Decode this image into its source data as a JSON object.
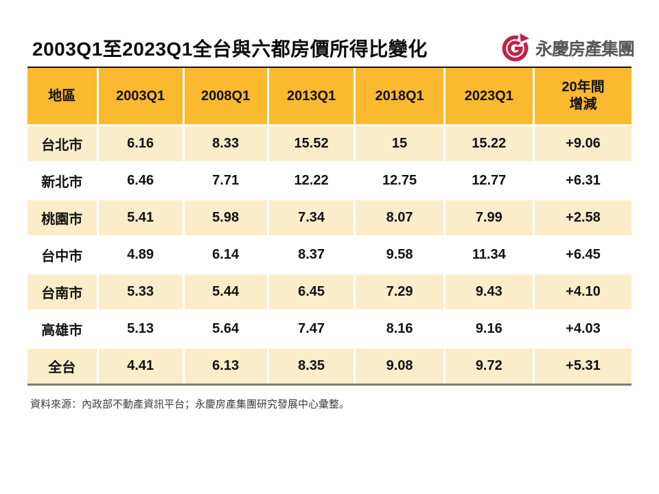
{
  "page": {
    "title": "2003Q1至2023Q1全台與六都房價所得比變化",
    "source_note": "資料來源：內政部不動產資訊平台；永慶房產集團研究發展中心彙整。"
  },
  "logo": {
    "brand_name": "永慶房產集團",
    "icon": "yungching-spiral-g-icon",
    "icon_color": "#C2214A",
    "text_color": "#595656"
  },
  "table": {
    "columns": [
      "地區",
      "2003Q1",
      "2008Q1",
      "2013Q1",
      "2018Q1",
      "2023Q1",
      "20年間\n增減"
    ],
    "rows": [
      {
        "region": "台北市",
        "values": [
          "6.16",
          "8.33",
          "15.52",
          "15",
          "15.22",
          "+9.06"
        ]
      },
      {
        "region": "新北市",
        "values": [
          "6.46",
          "7.71",
          "12.22",
          "12.75",
          "12.77",
          "+6.31"
        ]
      },
      {
        "region": "桃園市",
        "values": [
          "5.41",
          "5.98",
          "7.34",
          "8.07",
          "7.99",
          "+2.58"
        ]
      },
      {
        "region": "台中市",
        "values": [
          "4.89",
          "6.14",
          "8.37",
          "9.58",
          "11.34",
          "+6.45"
        ]
      },
      {
        "region": "台南市",
        "values": [
          "5.33",
          "5.44",
          "6.45",
          "7.29",
          "9.43",
          "+4.10"
        ]
      },
      {
        "region": "高雄市",
        "values": [
          "5.13",
          "5.64",
          "7.47",
          "8.16",
          "9.16",
          "+4.03"
        ]
      },
      {
        "region": "全台",
        "values": [
          "4.41",
          "6.13",
          "8.35",
          "9.08",
          "9.72",
          "+5.31"
        ]
      }
    ],
    "colors": {
      "header_bg": "#FBB92F",
      "row_cream_bg": "#FCEDCA",
      "row_white_bg": "#FFFFFF",
      "top_border": "#101010",
      "bottom_border": "#7F7B6C",
      "text": "#111111"
    }
  },
  "chart_data": {
    "type": "table",
    "title": "2003Q1至2023Q1全台與六都房價所得比變化",
    "columns": [
      "地區",
      "2003Q1",
      "2008Q1",
      "2013Q1",
      "2018Q1",
      "2023Q1",
      "20年間增減"
    ],
    "series": [
      {
        "name": "台北市",
        "values": [
          6.16,
          8.33,
          15.52,
          15,
          15.22
        ],
        "change_20yr": 9.06
      },
      {
        "name": "新北市",
        "values": [
          6.46,
          7.71,
          12.22,
          12.75,
          12.77
        ],
        "change_20yr": 6.31
      },
      {
        "name": "桃園市",
        "values": [
          5.41,
          5.98,
          7.34,
          8.07,
          7.99
        ],
        "change_20yr": 2.58
      },
      {
        "name": "台中市",
        "values": [
          4.89,
          6.14,
          8.37,
          9.58,
          11.34
        ],
        "change_20yr": 6.45
      },
      {
        "name": "台南市",
        "values": [
          5.33,
          5.44,
          6.45,
          7.29,
          9.43
        ],
        "change_20yr": 4.1
      },
      {
        "name": "高雄市",
        "values": [
          5.13,
          5.64,
          7.47,
          8.16,
          9.16
        ],
        "change_20yr": 4.03
      },
      {
        "name": "全台",
        "values": [
          4.41,
          6.13,
          8.35,
          9.08,
          9.72
        ],
        "change_20yr": 5.31
      }
    ],
    "x_categories": [
      "2003Q1",
      "2008Q1",
      "2013Q1",
      "2018Q1",
      "2023Q1"
    ],
    "source": "資料來源：內政部不動產資訊平台；永慶房產集團研究發展中心彙整。"
  }
}
